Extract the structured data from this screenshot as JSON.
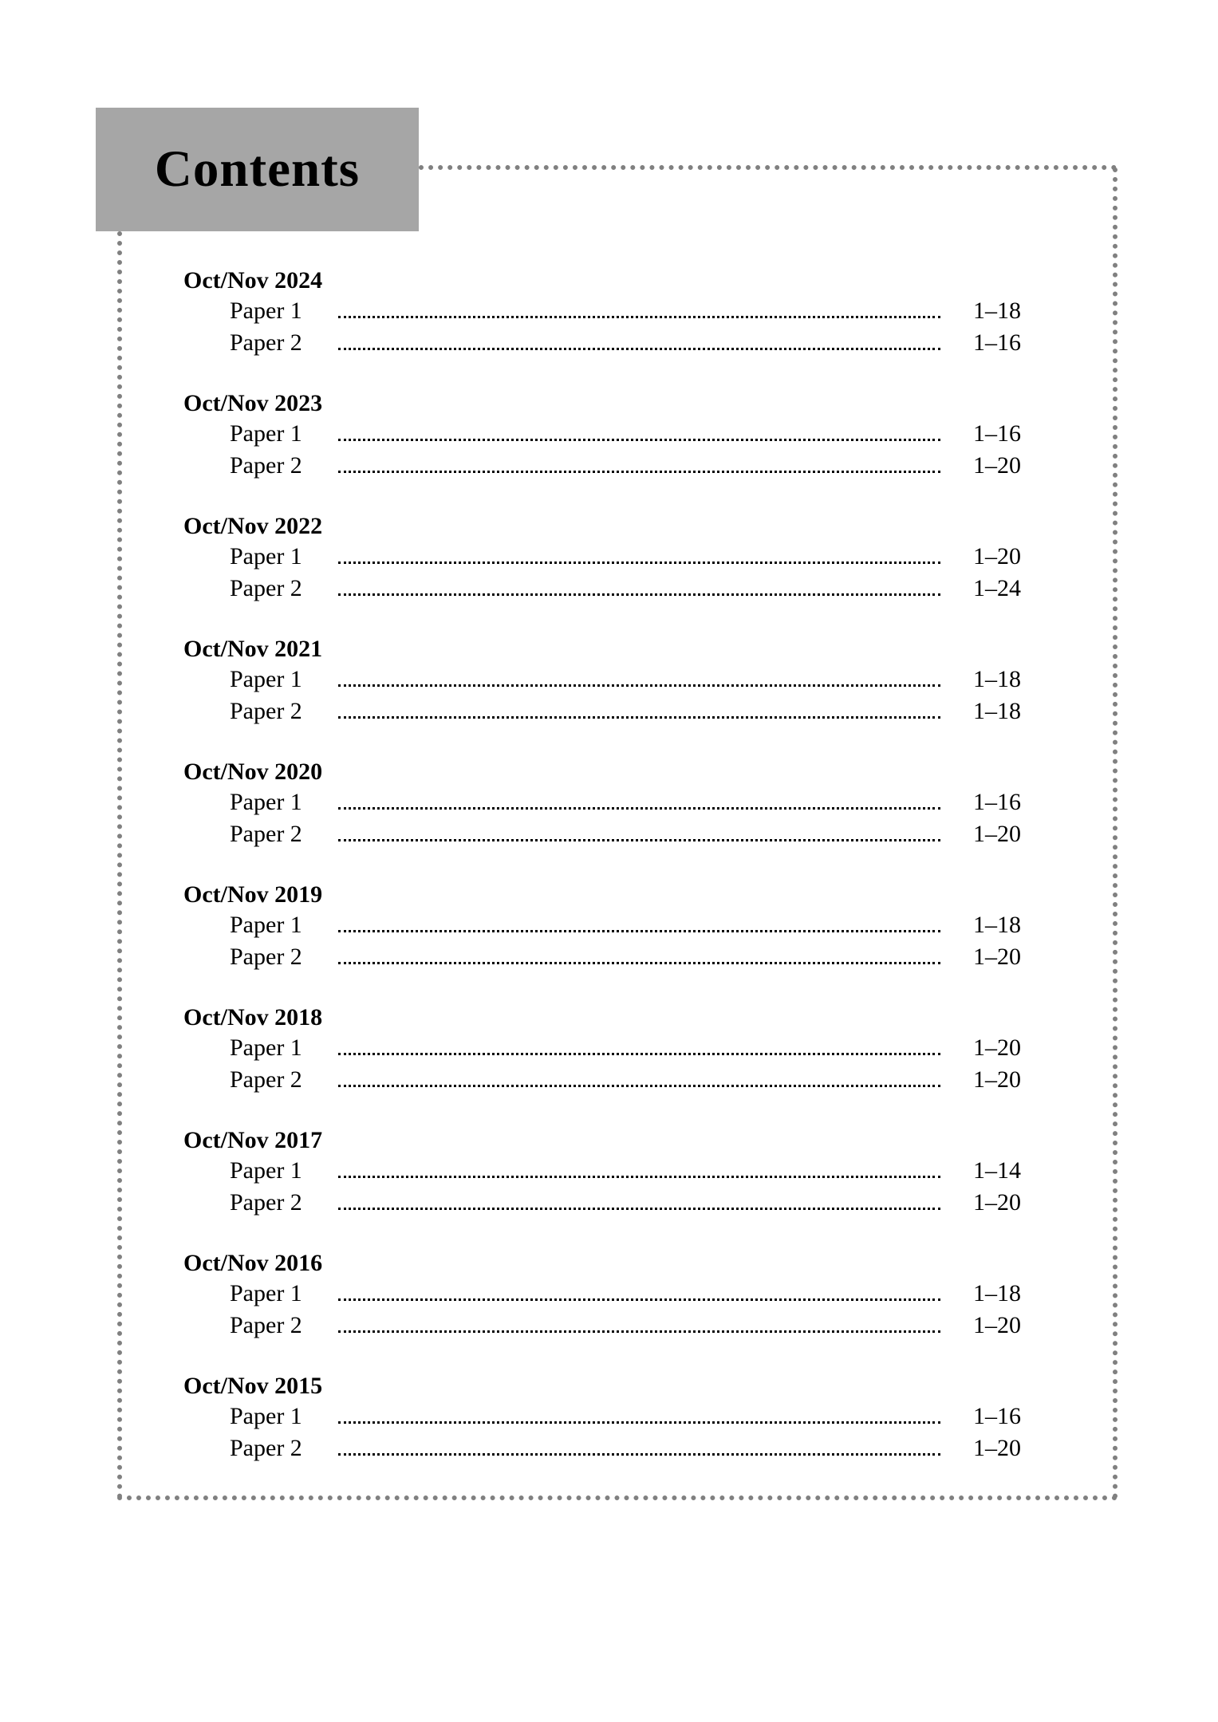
{
  "header": {
    "title": "Contents"
  },
  "colors": {
    "banner_bg": "#a6a6a6",
    "dotted_border": "#808080",
    "text": "#000000",
    "page_bg": "#ffffff"
  },
  "typography": {
    "title_fontsize": 65,
    "heading_fontsize": 30,
    "body_fontsize": 30,
    "font_family": "Times New Roman"
  },
  "sections": [
    {
      "heading": "Oct/Nov 2024",
      "papers": [
        {
          "label": "Paper 1",
          "pages": "1–18"
        },
        {
          "label": "Paper 2",
          "pages": "1–16"
        }
      ]
    },
    {
      "heading": "Oct/Nov 2023",
      "papers": [
        {
          "label": "Paper 1",
          "pages": "1–16"
        },
        {
          "label": "Paper 2",
          "pages": "1–20"
        }
      ]
    },
    {
      "heading": "Oct/Nov 2022",
      "papers": [
        {
          "label": "Paper 1",
          "pages": "1–20"
        },
        {
          "label": "Paper 2",
          "pages": "1–24"
        }
      ]
    },
    {
      "heading": "Oct/Nov 2021",
      "papers": [
        {
          "label": "Paper 1",
          "pages": "1–18"
        },
        {
          "label": "Paper 2",
          "pages": "1–18"
        }
      ]
    },
    {
      "heading": "Oct/Nov 2020",
      "papers": [
        {
          "label": "Paper 1",
          "pages": "1–16"
        },
        {
          "label": "Paper 2",
          "pages": "1–20"
        }
      ]
    },
    {
      "heading": "Oct/Nov 2019",
      "papers": [
        {
          "label": "Paper 1",
          "pages": "1–18"
        },
        {
          "label": "Paper 2",
          "pages": "1–20"
        }
      ]
    },
    {
      "heading": "Oct/Nov 2018",
      "papers": [
        {
          "label": "Paper 1",
          "pages": "1–20"
        },
        {
          "label": "Paper 2",
          "pages": "1–20"
        }
      ]
    },
    {
      "heading": "Oct/Nov 2017",
      "papers": [
        {
          "label": "Paper 1",
          "pages": "1–14"
        },
        {
          "label": "Paper 2",
          "pages": "1–20"
        }
      ]
    },
    {
      "heading": "Oct/Nov 2016",
      "papers": [
        {
          "label": "Paper 1",
          "pages": "1–18"
        },
        {
          "label": "Paper 2",
          "pages": "1–20"
        }
      ]
    },
    {
      "heading": "Oct/Nov 2015",
      "papers": [
        {
          "label": "Paper 1",
          "pages": "1–16"
        },
        {
          "label": "Paper 2",
          "pages": "1–20"
        }
      ]
    }
  ]
}
